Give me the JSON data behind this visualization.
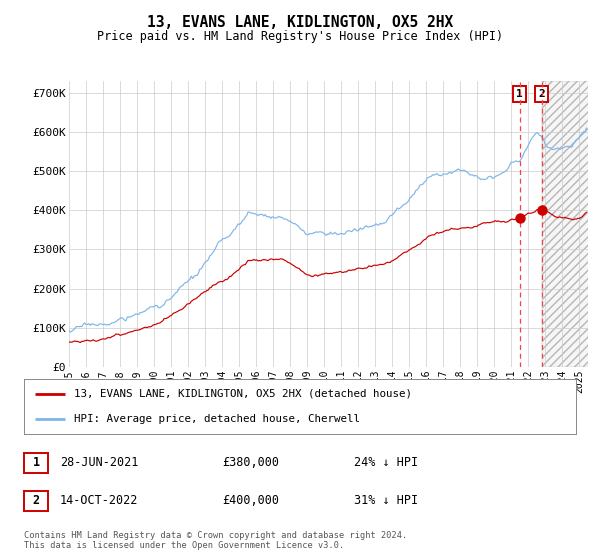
{
  "title": "13, EVANS LANE, KIDLINGTON, OX5 2HX",
  "subtitle": "Price paid vs. HM Land Registry's House Price Index (HPI)",
  "legend_line1": "13, EVANS LANE, KIDLINGTON, OX5 2HX (detached house)",
  "legend_line2": "HPI: Average price, detached house, Cherwell",
  "annotation1_date": "28-JUN-2021",
  "annotation1_price": "£380,000",
  "annotation1_hpi": "24% ↓ HPI",
  "annotation2_date": "14-OCT-2022",
  "annotation2_price": "£400,000",
  "annotation2_hpi": "31% ↓ HPI",
  "footer": "Contains HM Land Registry data © Crown copyright and database right 2024.\nThis data is licensed under the Open Government Licence v3.0.",
  "hpi_color": "#7EB6E8",
  "price_color": "#CC0000",
  "marker_color": "#CC0000",
  "vline_color": "#EE4444",
  "background_color": "#FFFFFF",
  "grid_color": "#CCCCCC",
  "ylim": [
    0,
    730000
  ],
  "yticks": [
    0,
    100000,
    200000,
    300000,
    400000,
    500000,
    600000,
    700000
  ],
  "ytick_labels": [
    "£0",
    "£100K",
    "£200K",
    "£300K",
    "£400K",
    "£500K",
    "£600K",
    "£700K"
  ],
  "sale1_x": 2021.49,
  "sale1_y": 380000,
  "sale2_x": 2022.79,
  "sale2_y": 400000,
  "xmin": 1995.0,
  "xmax": 2025.5
}
